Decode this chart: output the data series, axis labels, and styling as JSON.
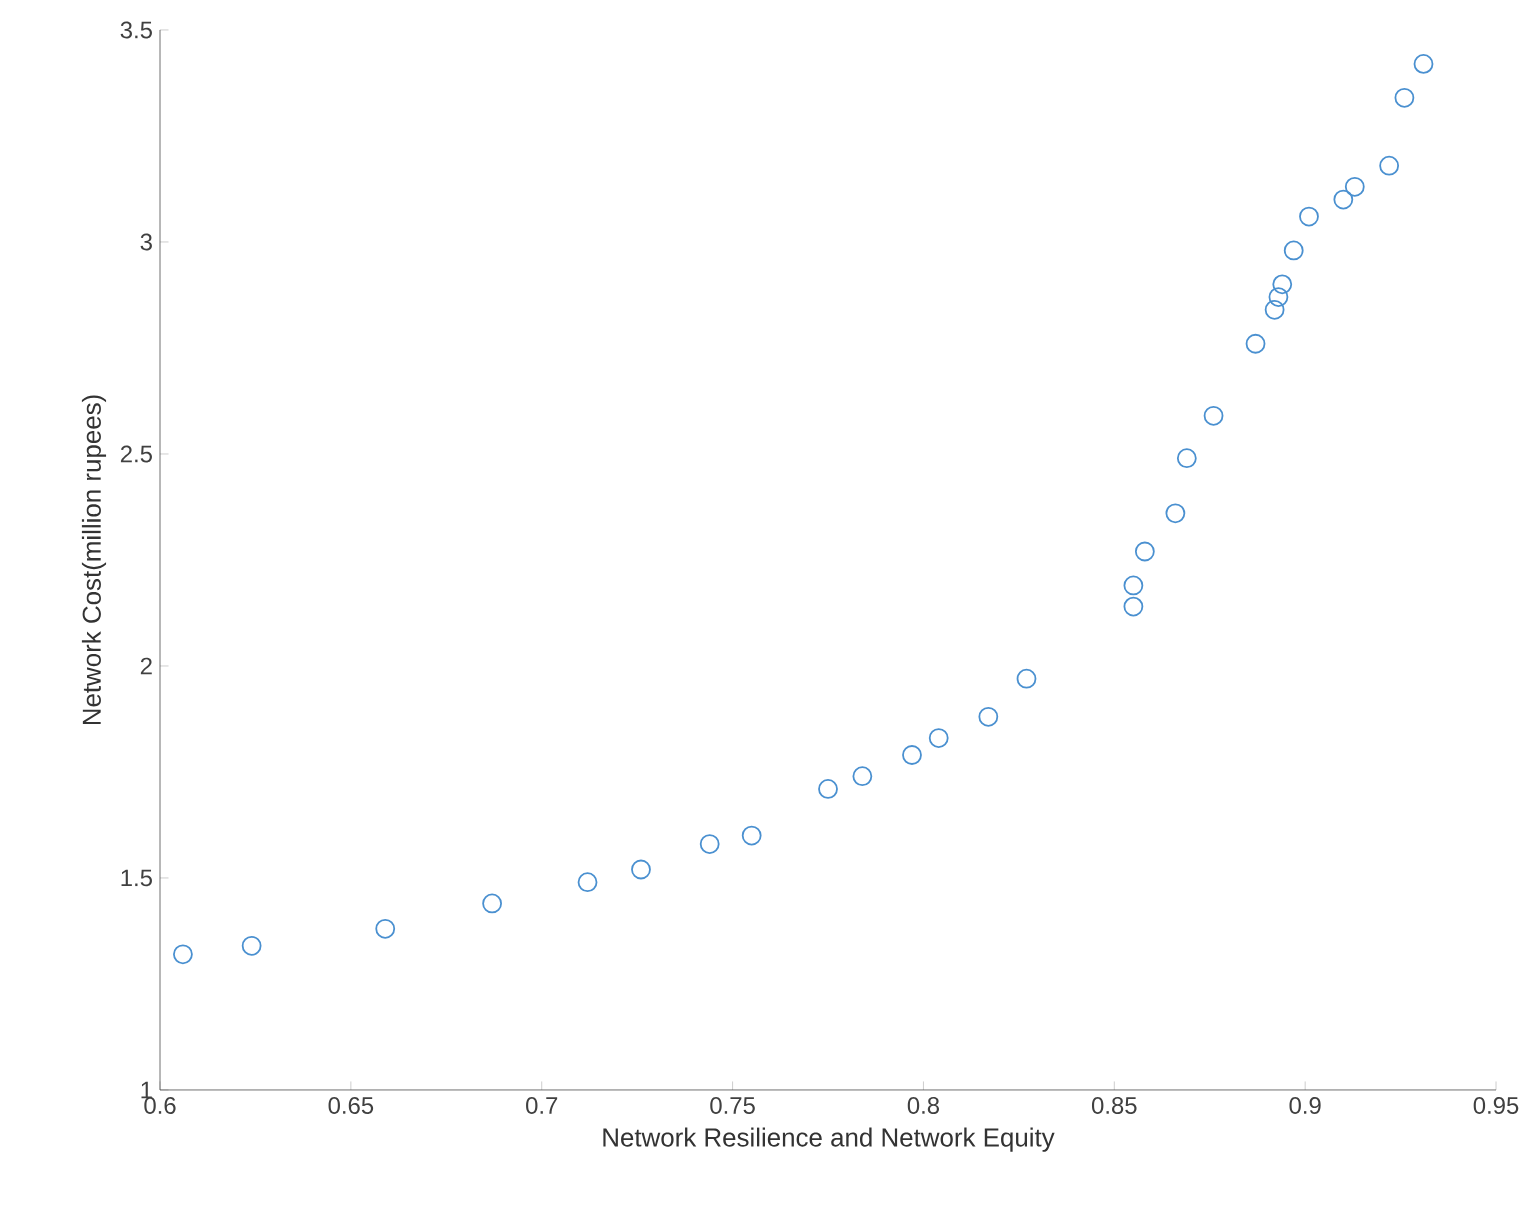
{
  "chart_data": {
    "type": "scatter",
    "xlabel": "Network Resilience and Network Equity",
    "ylabel": "Network Cost(million rupees)",
    "x": [
      0.606,
      0.624,
      0.659,
      0.687,
      0.712,
      0.726,
      0.744,
      0.755,
      0.775,
      0.784,
      0.797,
      0.804,
      0.817,
      0.827,
      0.855,
      0.855,
      0.858,
      0.866,
      0.869,
      0.876,
      0.887,
      0.892,
      0.893,
      0.894,
      0.897,
      0.901,
      0.91,
      0.913,
      0.922,
      0.926,
      0.931
    ],
    "values": [
      1.32,
      1.34,
      1.38,
      1.44,
      1.49,
      1.52,
      1.58,
      1.6,
      1.71,
      1.74,
      1.79,
      1.83,
      1.88,
      1.97,
      2.14,
      2.19,
      2.27,
      2.36,
      2.49,
      2.59,
      2.76,
      2.84,
      2.87,
      2.9,
      2.98,
      3.06,
      3.1,
      3.13,
      3.18,
      3.34,
      3.42
    ],
    "color": "#4a90d0",
    "marker": "circle",
    "grid": false,
    "xlim": [
      0.6,
      0.95
    ],
    "xticks": [
      0.6,
      0.65,
      0.7,
      0.75,
      0.8,
      0.85,
      0.9,
      0.95
    ],
    "ylim": [
      1,
      3.5
    ],
    "yticks": [
      1,
      1.5,
      2,
      2.5,
      3,
      3.5
    ]
  }
}
